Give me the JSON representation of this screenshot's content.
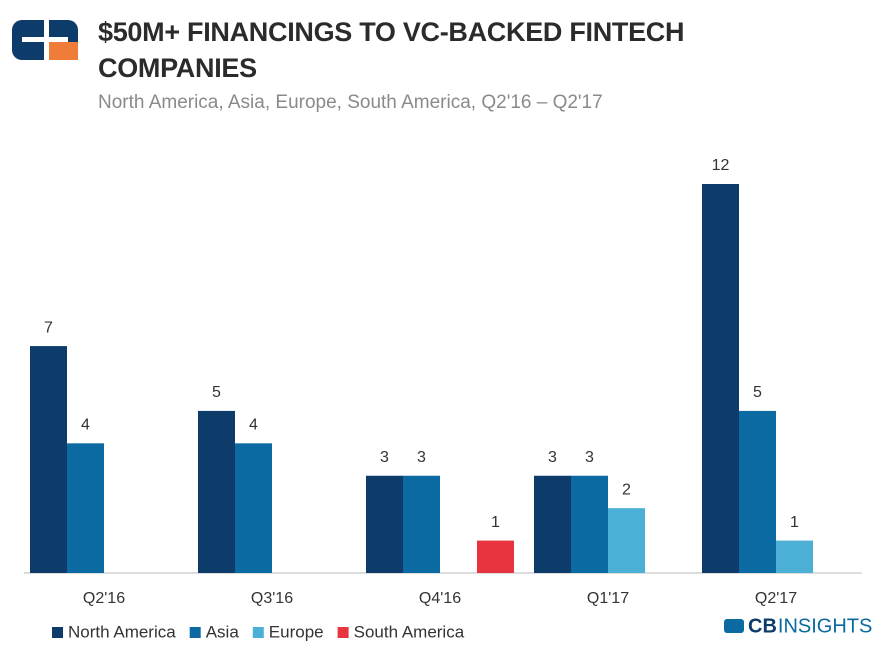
{
  "chart_data": {
    "type": "bar",
    "title": "$50M+ FINANCINGS TO VC-BACKED FINTECH COMPANIES",
    "subtitle": "North America, Asia, Europe, South America, Q2'16 – Q2'17",
    "categories": [
      "Q2'16",
      "Q3'16",
      "Q4'16",
      "Q1'17",
      "Q2'17"
    ],
    "series": [
      {
        "name": "North America",
        "color": "#0d3c6b",
        "values": [
          7,
          5,
          3,
          3,
          12
        ]
      },
      {
        "name": "Asia",
        "color": "#0a6aa1",
        "values": [
          4,
          4,
          3,
          3,
          5
        ]
      },
      {
        "name": "Europe",
        "color": "#4bafd6",
        "values": [
          null,
          null,
          null,
          2,
          1
        ]
      },
      {
        "name": "South America",
        "color": "#e8343f",
        "values": [
          null,
          null,
          1,
          null,
          null
        ]
      }
    ],
    "ylim": [
      0,
      12
    ],
    "brand": [
      "CB",
      "INSIGHTS"
    ]
  }
}
